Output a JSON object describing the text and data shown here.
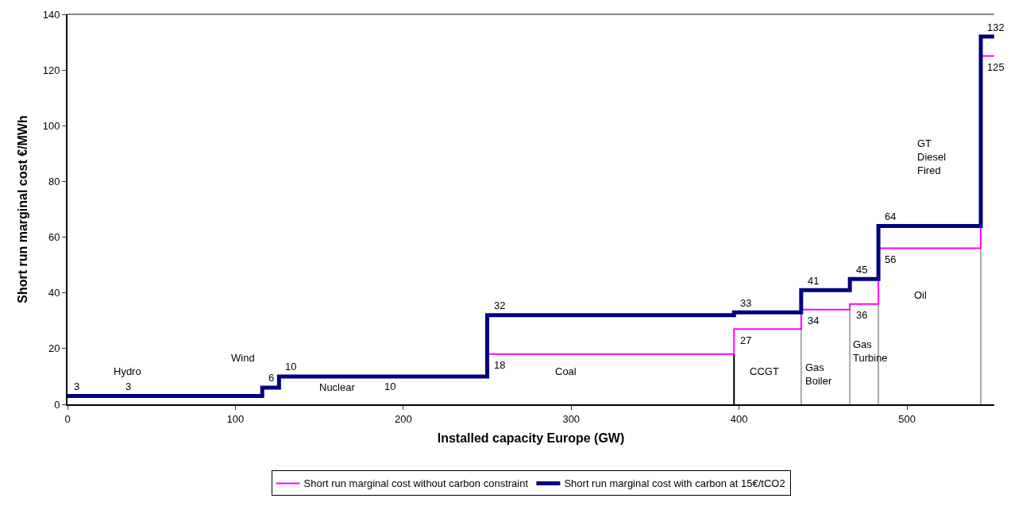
{
  "chart_data": {
    "type": "step",
    "xlabel": "Installed capacity Europe (GW)",
    "ylabel": "Short run marginal cost €/MWh",
    "x": [
      0,
      116,
      126,
      250,
      397,
      437,
      466,
      483,
      544,
      552
    ],
    "series": [
      {
        "name": "Short run marginal cost without carbon constraint",
        "color": "#ff00ff",
        "values": [
          null,
          null,
          null,
          18,
          27,
          34,
          36,
          56,
          125,
          125
        ],
        "value_labels": [
          null,
          null,
          null,
          "18",
          "27",
          "34",
          "36",
          "56",
          "125",
          null
        ]
      },
      {
        "name": "Short run marginal cost with carbon at 15€/tCO2",
        "color": "#000080",
        "values": [
          3,
          6,
          10,
          32,
          33,
          41,
          45,
          64,
          132,
          132
        ],
        "value_labels": [
          "3",
          "6",
          "10",
          "32",
          "33",
          "41",
          "45",
          "64",
          "132",
          null
        ]
      }
    ],
    "xlim": [
      0,
      552
    ],
    "xticks": [
      0,
      100,
      200,
      300,
      400,
      500
    ],
    "ylim": [
      0,
      140
    ],
    "yticks": [
      0,
      20,
      40,
      60,
      80,
      100,
      120,
      140
    ],
    "grid": false,
    "legend": "bottom",
    "marker": "none",
    "line_style": "solid",
    "ref_lines": [
      {
        "axis": "x",
        "value": 397,
        "color": "#000000"
      },
      {
        "axis": "x",
        "value": 437,
        "color": "#aaaaaa"
      },
      {
        "axis": "x",
        "value": 466,
        "color": "#aaaaaa"
      },
      {
        "axis": "x",
        "value": 483,
        "color": "#aaaaaa"
      },
      {
        "axis": "x",
        "value": 544,
        "color": "#aaaaaa"
      }
    ],
    "annotations": [
      {
        "text": "3",
        "x": 36,
        "y": 3
      },
      {
        "text": "10",
        "x": 192,
        "y": 10
      },
      "Hydro",
      "Wind",
      "Nuclear",
      "Coal",
      "CCGT",
      "Gas\nBoiler",
      "Gas\nTurbine",
      "Oil",
      "GT\nDiesel\nFired"
    ]
  }
}
